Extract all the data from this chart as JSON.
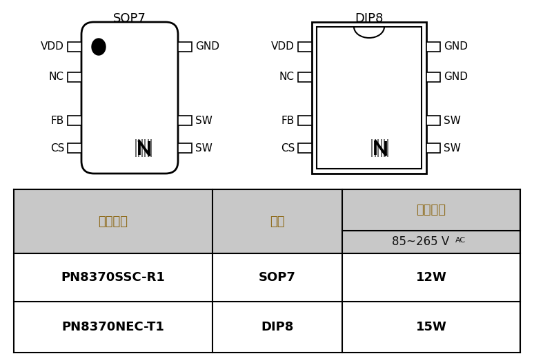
{
  "bg_color": "#ffffff",
  "sop7_label": "SOP7",
  "dip8_label": "DIP8",
  "sop7_left_pins": [
    "VDD",
    "NC",
    "FB",
    "CS"
  ],
  "sop7_right_pins": [
    "GND",
    "",
    "SW",
    "SW"
  ],
  "dip8_left_pins": [
    "VDD",
    "NC",
    "FB",
    "CS"
  ],
  "dip8_right_pins": [
    "GND",
    "GND",
    "SW",
    "SW"
  ],
  "table_header_bg": "#c8c8c8",
  "table_row_bg": "#ffffff",
  "table_header_color": "#8b6510",
  "table_data_color": "#000000",
  "table_col1_header": "订购代码",
  "table_col2_header": "封装",
  "table_col3_header": "典型功率",
  "table_rows": [
    [
      "PN8370SSC-R1",
      "SOP7",
      "12W"
    ],
    [
      "PN8370NEC-T1",
      "DIP8",
      "15W"
    ]
  ]
}
